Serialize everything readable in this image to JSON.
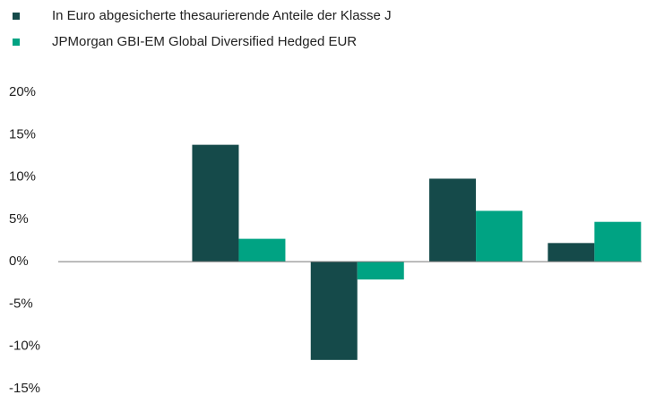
{
  "chart_data": {
    "type": "bar",
    "categories": [
      null,
      null,
      null,
      null,
      null
    ],
    "series": [
      {
        "name": "In Euro abgesicherte thesaurierende Anteile der Klasse J",
        "color": "#154a4a",
        "values": [
          null,
          13.8,
          -11.6,
          9.8,
          2.2
        ]
      },
      {
        "name": "JPMorgan GBI-EM Global Diversified Hedged EUR",
        "color": "#00a383",
        "values": [
          null,
          2.7,
          -2.1,
          6.0,
          4.7
        ]
      }
    ],
    "ylim": [
      -15,
      20
    ],
    "yticks": [
      {
        "value": -15,
        "label": "-15%"
      },
      {
        "value": -10,
        "label": "-10%"
      },
      {
        "value": -5,
        "label": "-5%"
      },
      {
        "value": 0,
        "label": "0%"
      },
      {
        "value": 5,
        "label": "5%"
      },
      {
        "value": 10,
        "label": "10%"
      },
      {
        "value": 15,
        "label": "15%"
      },
      {
        "value": 20,
        "label": "20%"
      }
    ],
    "grid": false,
    "legend": "top-left"
  }
}
